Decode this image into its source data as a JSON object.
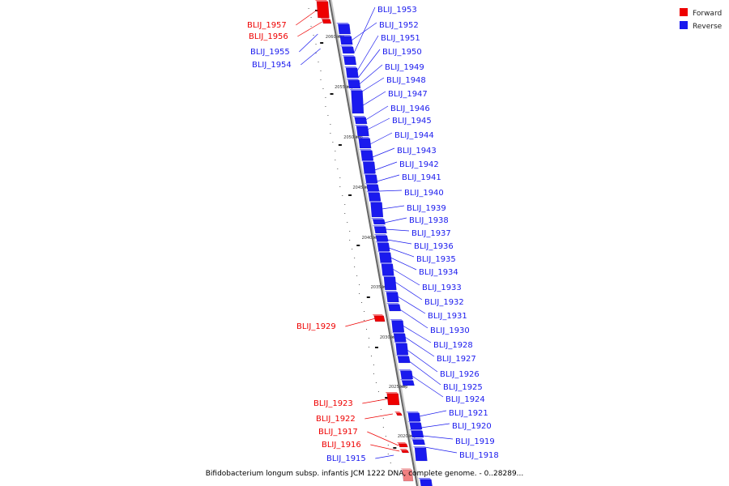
{
  "legend": {
    "forward_label": "Forward",
    "reverse_label": "Reverse",
    "forward_color": "#ee0000",
    "reverse_color": "#1a1aee"
  },
  "caption": "Bifidobacterium longum subsp. infantis JCM 1222 DNA, complete genome. - 0..28289...",
  "axis_ticks": [
    "2060 kbp",
    "2055 kbp",
    "2050 kbp",
    "2045 kbp",
    "2040 kbp",
    "2035 kbp",
    "2030 kbp",
    "2025 kbp",
    "2020 kbp"
  ],
  "reverse_genes": [
    "BLIJ_1953",
    "BLIJ_1952",
    "BLIJ_1951",
    "BLIJ_1950",
    "BLIJ_1949",
    "BLIJ_1948",
    "BLIJ_1947",
    "BLIJ_1946",
    "BLIJ_1945",
    "BLIJ_1944",
    "BLIJ_1943",
    "BLIJ_1942",
    "BLIJ_1941",
    "BLIJ_1940",
    "BLIJ_1939",
    "BLIJ_1938",
    "BLIJ_1937",
    "BLIJ_1936",
    "BLIJ_1935",
    "BLIJ_1934",
    "BLIJ_1933",
    "BLIJ_1932",
    "BLIJ_1931",
    "BLIJ_1930",
    "BLIJ_1928",
    "BLIJ_1927",
    "BLIJ_1926",
    "BLIJ_1925",
    "BLIJ_1924",
    "BLIJ_1921",
    "BLIJ_1920",
    "BLIJ_1919",
    "BLIJ_1918"
  ],
  "forward_genes": [
    "BLIJ_1957",
    "BLIJ_1956",
    "BLIJ_1929",
    "BLIJ_1923",
    "BLIJ_1922",
    "BLIJ_1917",
    "BLIJ_1916"
  ],
  "reverse_left_genes": [
    "BLIJ_1955",
    "BLIJ_1954",
    "BLIJ_1915"
  ]
}
